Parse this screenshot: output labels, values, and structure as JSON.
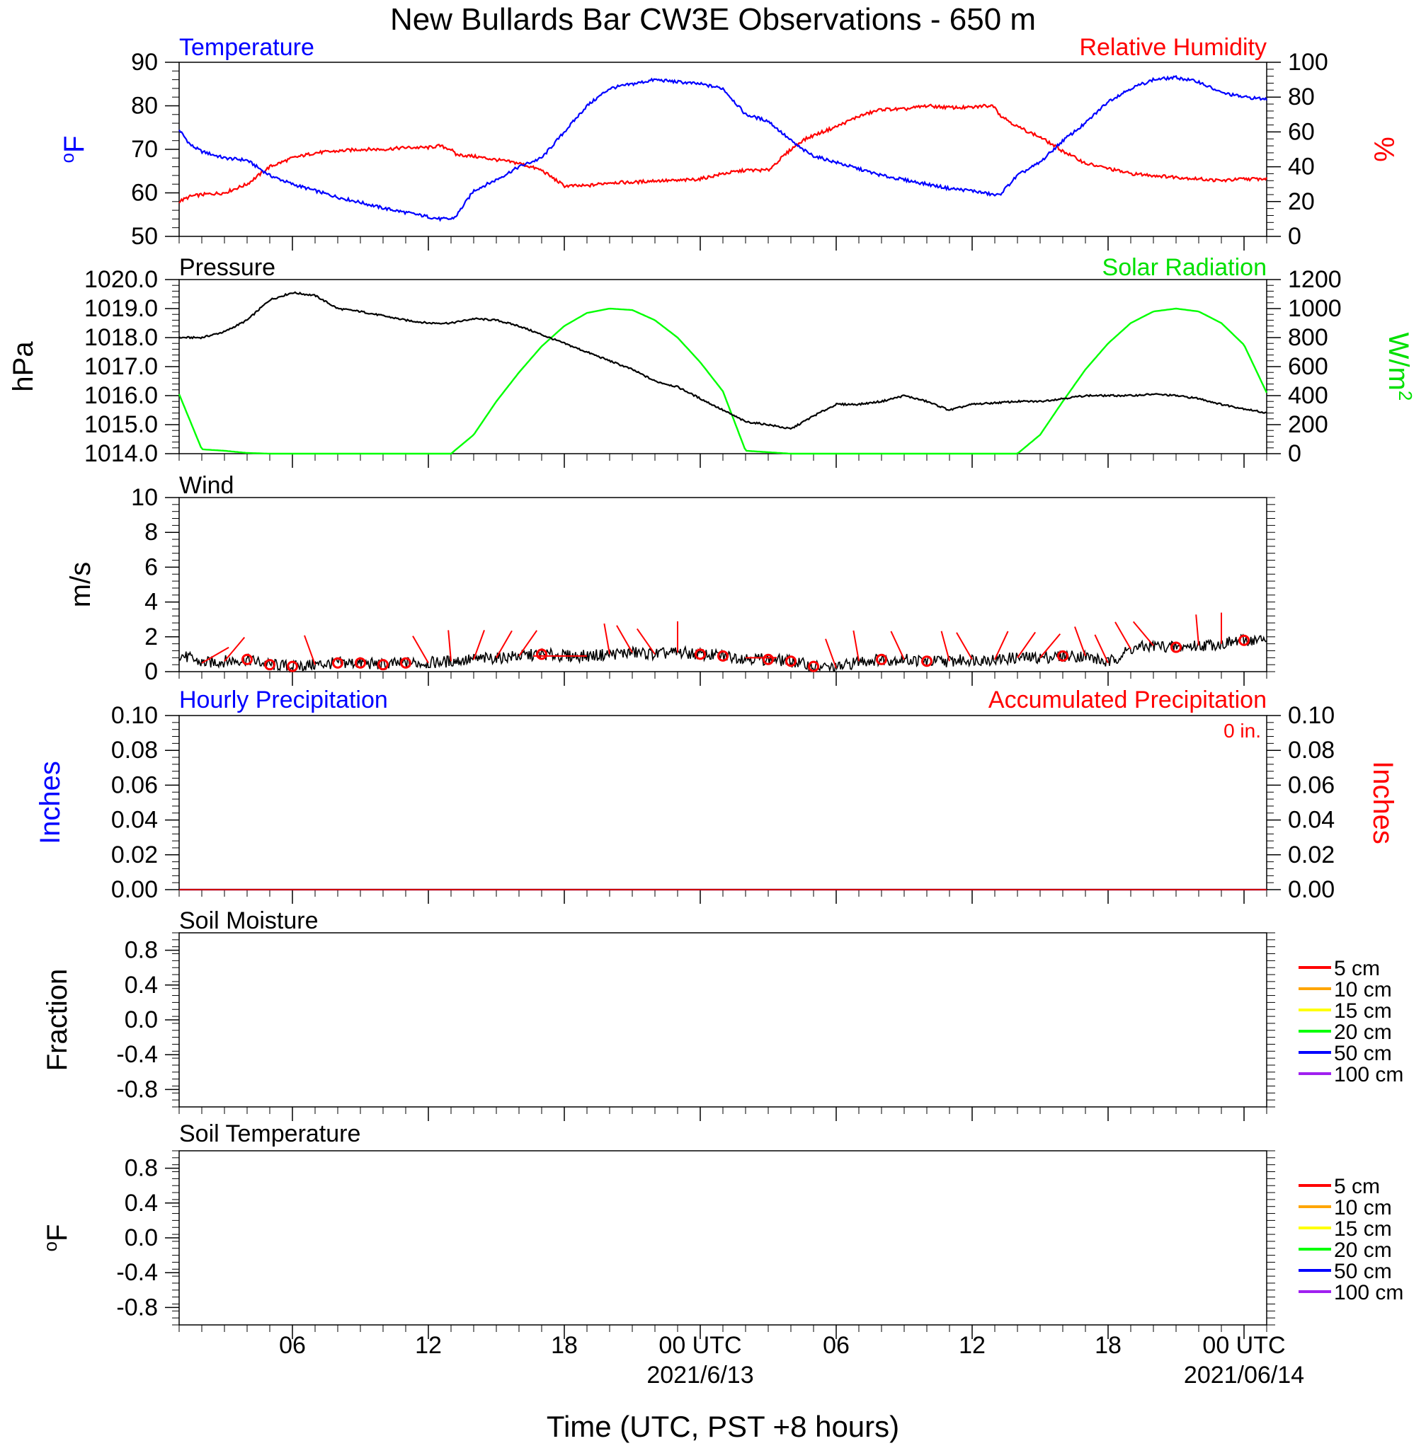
{
  "title": "New Bullards Bar CW3E Observations - 650 m",
  "xaxis": {
    "label": "Time (UTC, PST +8 hours)",
    "range_hours": [
      1.0,
      49.0
    ],
    "tick_hours": [
      6,
      12,
      18,
      24,
      30,
      36,
      42,
      48
    ],
    "tick_labels": [
      "06",
      "12",
      "18",
      "00 UTC",
      "06",
      "12",
      "18",
      "00 UTC"
    ],
    "date_labels": [
      {
        "hour": 24,
        "text": "2021/6/13"
      },
      {
        "hour": 48,
        "text": "2021/06/14"
      }
    ]
  },
  "colors": {
    "temperature": "#0000ff",
    "humidity": "#ff0000",
    "pressure": "#000000",
    "solar": "#00ff00",
    "wind_speed": "#000000",
    "wind_barbs": "#ff0000",
    "hourly_precip": "#0000ff",
    "accum_precip": "#ff0000"
  },
  "panels": {
    "temp_rh": {
      "left_title": "Temperature",
      "right_title": "Relative Humidity",
      "left_unit": "oF",
      "right_unit": "%",
      "left_ylim": [
        50,
        90
      ],
      "left_ticks": [
        "50",
        "60",
        "70",
        "80",
        "90"
      ],
      "right_ylim": [
        0,
        100
      ],
      "right_ticks": [
        "0",
        "20",
        "40",
        "60",
        "80",
        "100"
      ]
    },
    "pressure_solar": {
      "left_title": "Pressure",
      "right_title": "Solar Radiation",
      "left_unit": "hPa",
      "right_unit": "W/m2",
      "left_ylim": [
        1014.0,
        1020.0
      ],
      "left_ticks": [
        "1014.0",
        "1015.0",
        "1016.0",
        "1017.0",
        "1018.0",
        "1019.0",
        "1020.0"
      ],
      "right_ylim": [
        0,
        1200
      ],
      "right_ticks": [
        "0",
        "200",
        "400",
        "600",
        "800",
        "1000",
        "1200"
      ]
    },
    "wind": {
      "left_title": "Wind",
      "left_unit": "m/s",
      "left_ylim": [
        0,
        10
      ],
      "left_ticks": [
        "0",
        "2",
        "4",
        "6",
        "8",
        "10"
      ]
    },
    "precip": {
      "left_title": "Hourly Precipitation",
      "right_title": "Accumulated Precipitation",
      "total_text": "0 in.",
      "left_unit": "Inches",
      "right_unit": "Inches",
      "left_ylim": [
        0,
        0.1
      ],
      "left_ticks": [
        "0.00",
        "0.02",
        "0.04",
        "0.06",
        "0.08",
        "0.10"
      ],
      "right_ticks": [
        "0.00",
        "0.02",
        "0.04",
        "0.06",
        "0.08",
        "0.10"
      ]
    },
    "soil_moisture": {
      "left_title": "Soil Moisture",
      "left_unit": "Fraction",
      "left_ylim": [
        -1.0,
        1.0
      ],
      "left_ticks": [
        "-0.8",
        "-0.4",
        "0.0",
        "0.4",
        "0.8"
      ]
    },
    "soil_temp": {
      "left_title": "Soil Temperature",
      "left_unit": "oF",
      "left_ylim": [
        -1.0,
        1.0
      ],
      "left_ticks": [
        "-0.8",
        "-0.4",
        "0.0",
        "0.4",
        "0.8"
      ]
    }
  },
  "soil_legend": [
    {
      "label": "5 cm",
      "color": "#ff0000"
    },
    {
      "label": "10 cm",
      "color": "#ffa500"
    },
    {
      "label": "15 cm",
      "color": "#ffff00"
    },
    {
      "label": "20 cm",
      "color": "#00ff00"
    },
    {
      "label": "50 cm",
      "color": "#0000ff"
    },
    {
      "label": "100 cm",
      "color": "#a020f0"
    }
  ],
  "chart_data": [
    {
      "type": "line",
      "title": "Temperature / Relative Humidity",
      "x_hours": [
        1.0,
        1.5,
        2.0,
        3.0,
        4.0,
        5.0,
        6.0,
        7.0,
        8.0,
        9.0,
        10.0,
        11.0,
        12.0,
        12.5,
        13.0,
        13.2,
        14.0,
        15.0,
        16.0,
        17.0,
        18.0,
        19.0,
        20.0,
        21.0,
        22.0,
        23.0,
        24.0,
        25.0,
        26.0,
        27.0,
        28.0,
        28.5,
        29.0,
        30.0,
        31.0,
        32.0,
        33.0,
        34.0,
        35.0,
        36.0,
        36.5,
        37.0,
        37.2,
        38.0,
        39.0,
        40.0,
        41.0,
        42.0,
        43.0,
        44.0,
        45.0,
        46.0,
        47.0,
        48.0,
        49.0
      ],
      "series": [
        {
          "name": "Temperature",
          "axis": "left",
          "unit": "oF",
          "values": [
            74.5,
            71,
            69.5,
            68,
            67.5,
            64,
            62,
            60.5,
            59,
            57.8,
            56.5,
            55.5,
            54.5,
            54,
            54,
            54.5,
            60.5,
            63,
            66,
            68,
            74,
            80,
            84,
            85,
            86,
            85.5,
            85,
            84,
            78,
            76.5,
            72,
            70,
            68.5,
            67,
            65.5,
            64,
            63,
            62,
            61,
            60.5,
            60,
            59.5,
            59.5,
            64,
            67,
            72,
            76,
            81,
            84,
            86,
            86.5,
            85.5,
            83,
            82,
            81.5
          ]
        },
        {
          "name": "Relative Humidity",
          "axis": "right",
          "unit": "%",
          "values": [
            20,
            23,
            24,
            25,
            30,
            40,
            45,
            48,
            49,
            50,
            50,
            51,
            51,
            52,
            50,
            47,
            46,
            44,
            42,
            38,
            29,
            29,
            31,
            31,
            32,
            32,
            33,
            36,
            38,
            38,
            50,
            55,
            58,
            63,
            69,
            73,
            73,
            75,
            74,
            74,
            75,
            75,
            70,
            63,
            57,
            49,
            42,
            39,
            36,
            35,
            34,
            33,
            32,
            33,
            33
          ]
        }
      ]
    },
    {
      "type": "line",
      "title": "Pressure / Solar Radiation",
      "x_hours": [
        1.0,
        2.0,
        3.0,
        4.0,
        5.0,
        6.0,
        7.0,
        8.0,
        9.0,
        10.0,
        11.0,
        12.0,
        13.0,
        14.0,
        15.0,
        16.0,
        17.0,
        18.0,
        19.0,
        20.0,
        21.0,
        22.0,
        23.0,
        24.0,
        25.0,
        26.0,
        27.0,
        28.0,
        29.0,
        30.0,
        31.0,
        32.0,
        33.0,
        34.0,
        35.0,
        36.0,
        37.0,
        38.0,
        39.0,
        40.0,
        41.0,
        42.0,
        43.0,
        44.0,
        45.0,
        46.0,
        47.0,
        48.0,
        49.0
      ],
      "series": [
        {
          "name": "Pressure",
          "axis": "left",
          "unit": "hPa",
          "values": [
            1018.0,
            1018.0,
            1018.2,
            1018.6,
            1019.3,
            1019.55,
            1019.45,
            1019.0,
            1018.9,
            1018.75,
            1018.6,
            1018.5,
            1018.5,
            1018.65,
            1018.6,
            1018.4,
            1018.1,
            1017.8,
            1017.5,
            1017.2,
            1016.9,
            1016.5,
            1016.3,
            1015.9,
            1015.5,
            1015.1,
            1015.0,
            1014.85,
            1015.3,
            1015.7,
            1015.7,
            1015.8,
            1016.0,
            1015.8,
            1015.5,
            1015.7,
            1015.75,
            1015.8,
            1015.8,
            1015.9,
            1016.0,
            1016.0,
            1016.0,
            1016.05,
            1016.0,
            1015.9,
            1015.7,
            1015.55,
            1015.4
          ]
        },
        {
          "name": "Solar Radiation",
          "axis": "right",
          "unit": "W/m2",
          "values": [
            410,
            30,
            20,
            5,
            0,
            0,
            0,
            0,
            0,
            0,
            0,
            0,
            0,
            130,
            360,
            560,
            740,
            880,
            970,
            1000,
            990,
            920,
            800,
            630,
            430,
            20,
            10,
            0,
            0,
            0,
            0,
            0,
            0,
            0,
            0,
            0,
            0,
            0,
            130,
            360,
            580,
            760,
            900,
            980,
            1000,
            980,
            900,
            750,
            420
          ]
        }
      ]
    },
    {
      "type": "line",
      "title": "Wind",
      "x_hours": [
        1,
        2,
        3,
        4,
        5,
        6,
        7,
        8,
        9,
        10,
        11,
        12,
        13,
        14,
        15,
        16,
        17,
        18,
        19,
        20,
        21,
        22,
        23,
        24,
        25,
        26,
        27,
        28,
        29,
        30,
        31,
        32,
        33,
        34,
        35,
        36,
        37,
        38,
        39,
        40,
        41,
        42,
        43,
        44,
        45,
        46,
        47,
        48,
        49
      ],
      "series": [
        {
          "name": "Wind speed",
          "axis": "left",
          "unit": "m/s",
          "values": [
            1.0,
            0.5,
            0.6,
            0.7,
            0.4,
            0.3,
            0.4,
            0.5,
            0.5,
            0.4,
            0.5,
            0.5,
            0.6,
            0.7,
            0.8,
            0.9,
            1.0,
            0.9,
            0.9,
            1.0,
            1.1,
            1.0,
            1.1,
            1.0,
            0.9,
            0.8,
            0.7,
            0.6,
            0.3,
            0.2,
            0.6,
            0.7,
            0.7,
            0.6,
            0.6,
            0.7,
            0.7,
            0.8,
            0.8,
            0.9,
            0.9,
            0.5,
            1.3,
            1.5,
            1.4,
            1.5,
            1.6,
            1.8,
            1.8
          ]
        }
      ],
      "barb_hours": [
        2,
        3,
        4,
        5,
        6,
        7,
        8,
        9,
        10,
        11,
        12,
        13,
        14,
        15,
        16,
        17,
        18,
        19,
        20,
        21,
        22,
        23,
        24,
        25,
        26,
        27,
        28,
        29,
        30,
        31,
        32,
        33,
        34,
        35,
        36,
        37,
        38,
        39,
        40,
        41,
        42,
        43,
        44,
        45,
        46,
        47,
        48
      ],
      "barb_calm": [
        false,
        false,
        true,
        true,
        true,
        false,
        true,
        true,
        true,
        true,
        false,
        false,
        false,
        false,
        false,
        true,
        false,
        false,
        false,
        false,
        false,
        false,
        true,
        true,
        false,
        true,
        true,
        true,
        false,
        false,
        true,
        false,
        true,
        false,
        false,
        false,
        false,
        false,
        true,
        false,
        false,
        false,
        false,
        true,
        false,
        false,
        true
      ],
      "barb_dir_deg": [
        240,
        220,
        0,
        0,
        0,
        160,
        0,
        0,
        0,
        0,
        150,
        175,
        200,
        210,
        215,
        0,
        90,
        90,
        170,
        150,
        145,
        180,
        0,
        0,
        270,
        0,
        0,
        0,
        160,
        170,
        0,
        155,
        0,
        165,
        150,
        205,
        215,
        220,
        0,
        160,
        155,
        150,
        140,
        0,
        175,
        180,
        160
      ]
    },
    {
      "type": "line",
      "title": "Hourly Precipitation / Accumulated Precipitation",
      "x_hours": [
        1,
        49
      ],
      "series": [
        {
          "name": "Hourly Precipitation",
          "axis": "left",
          "unit": "Inches",
          "values": [
            0,
            0
          ]
        },
        {
          "name": "Accumulated Precipitation",
          "axis": "right",
          "unit": "Inches",
          "values": [
            0,
            0
          ]
        }
      ]
    },
    {
      "type": "line",
      "title": "Soil Moisture",
      "series": []
    },
    {
      "type": "line",
      "title": "Soil Temperature",
      "series": []
    }
  ]
}
